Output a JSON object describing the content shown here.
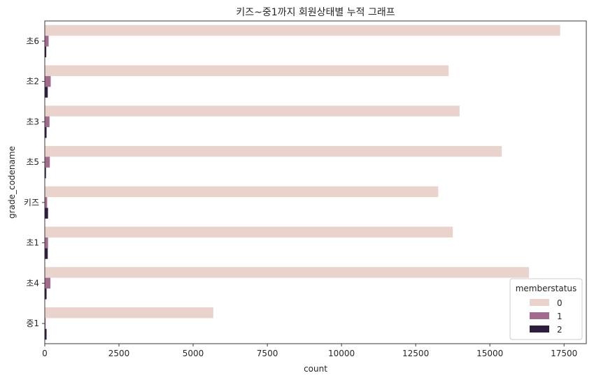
{
  "chart_data": {
    "type": "bar",
    "orientation": "horizontal",
    "title": "키즈~중1까지 회원상태별 누적 그래프",
    "xlabel": "count",
    "ylabel": "grade_codename",
    "categories": [
      "초6",
      "초2",
      "초3",
      "초5",
      "키즈",
      "초1",
      "초4",
      "중1"
    ],
    "xlim": [
      0,
      18250
    ],
    "xticks": [
      0,
      2500,
      5000,
      7500,
      10000,
      12500,
      15000,
      17500
    ],
    "legend": {
      "title": "memberstatus",
      "placement": "lower-right"
    },
    "series": [
      {
        "name": "0",
        "color": "#ebd3cd",
        "values": [
          17370,
          13610,
          13980,
          15400,
          13260,
          13750,
          16320,
          5680
        ]
      },
      {
        "name": "1",
        "color": "#a26b8e",
        "values": [
          130,
          200,
          160,
          170,
          80,
          110,
          190,
          30
        ]
      },
      {
        "name": "2",
        "color": "#2d1e3e",
        "values": [
          50,
          100,
          60,
          40,
          110,
          100,
          60,
          60
        ]
      }
    ]
  }
}
